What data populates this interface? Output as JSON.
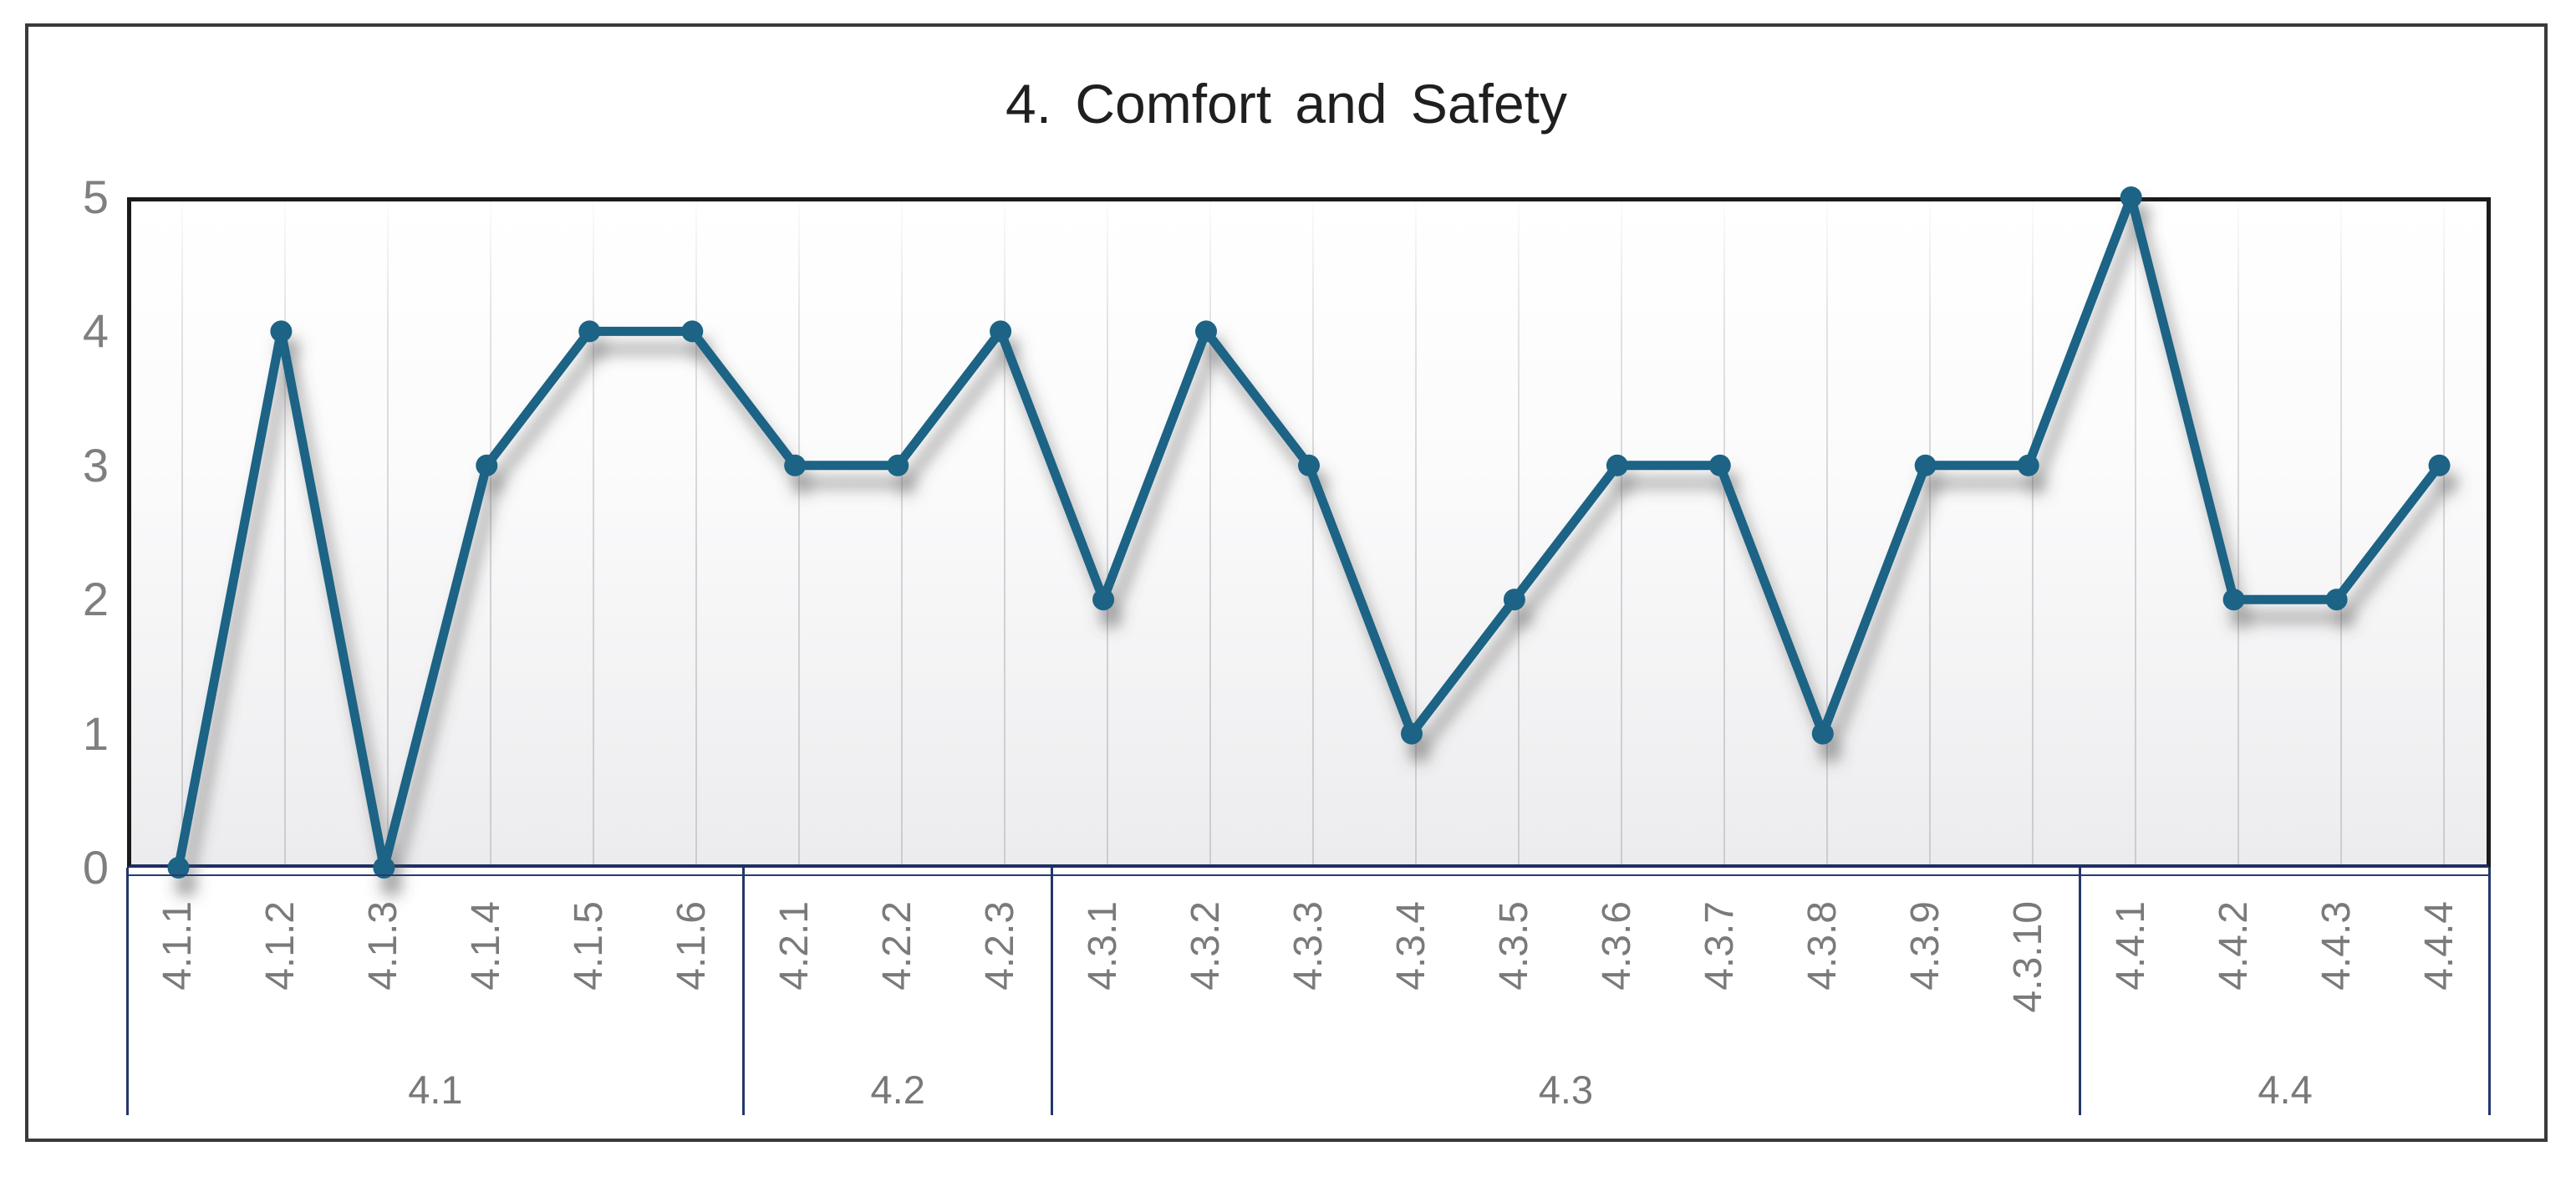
{
  "chart_data": {
    "type": "line",
    "title": "4. Comfort and Safety",
    "categories": [
      "4.1.1",
      "4.1.2",
      "4.1.3",
      "4.1.4",
      "4.1.5",
      "4.1.6",
      "4.2.1",
      "4.2.2",
      "4.2.3",
      "4.3.1",
      "4.3.2",
      "4.3.3",
      "4.3.4",
      "4.3.5",
      "4.3.6",
      "4.3.7",
      "4.3.8",
      "4.3.9",
      "4.3.10",
      "4.4.1",
      "4.4.2",
      "4.4.3",
      "4.4.4"
    ],
    "values": [
      0,
      4,
      0,
      3,
      4,
      4,
      3,
      3,
      4,
      2,
      4,
      3,
      1,
      2,
      3,
      3,
      1,
      3,
      3,
      5,
      2,
      2,
      3
    ],
    "groups": [
      {
        "label": "4.1",
        "count": 6
      },
      {
        "label": "4.2",
        "count": 3
      },
      {
        "label": "4.3",
        "count": 10
      },
      {
        "label": "4.4",
        "count": 4
      }
    ],
    "y_ticks": [
      0,
      1,
      2,
      3,
      4,
      5
    ],
    "ylim": [
      0,
      5
    ],
    "xlabel": "",
    "ylabel": "",
    "grid": "vertical-only",
    "legend": "none",
    "styles": {
      "line_color": "#1c6485",
      "marker_color": "#1c6485",
      "axis_line_color": "#1e2f63",
      "separator_color": "#24376b",
      "plot_border_color": "#1a1a1a",
      "tick_label_color": "#7f7f7f",
      "title_color": "#1f1f1f",
      "gridline_color": "#d2d2d6",
      "figure_border_color": "#3a3a3a"
    }
  }
}
